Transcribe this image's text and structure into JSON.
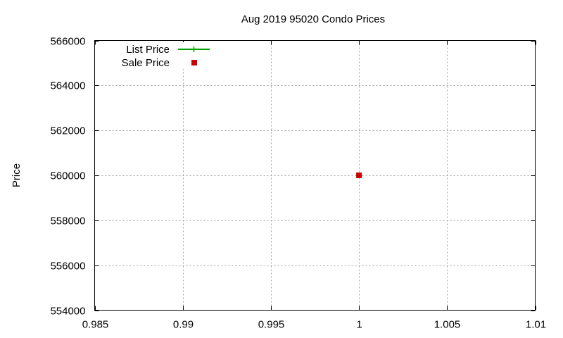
{
  "chart_data": {
    "type": "scatter",
    "title": "Aug 2019 95020 Condo Prices",
    "xlabel": "",
    "ylabel": "Price",
    "xlim": [
      0.985,
      1.01
    ],
    "ylim": [
      554000,
      566000
    ],
    "x_ticks": [
      "0.985",
      "0.99",
      "0.995",
      "1",
      "1.005",
      "1.01"
    ],
    "y_ticks": [
      "554000",
      "556000",
      "558000",
      "560000",
      "562000",
      "564000",
      "566000"
    ],
    "grid": true,
    "legend_position": "top-left",
    "series": [
      {
        "name": "List Price",
        "marker": "plus-line",
        "color": "#00a000",
        "points": [
          {
            "x": 1,
            "y": 560000
          }
        ]
      },
      {
        "name": "Sale Price",
        "marker": "square",
        "color": "#cc0000",
        "points": [
          {
            "x": 1,
            "y": 560000
          }
        ]
      }
    ]
  }
}
